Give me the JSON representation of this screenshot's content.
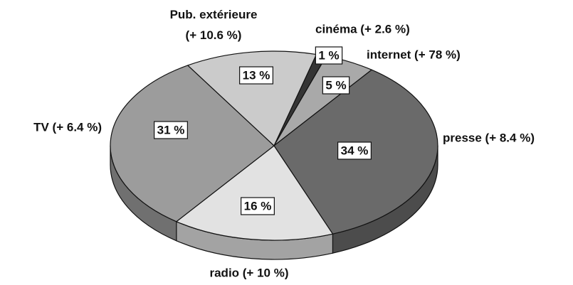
{
  "chart_data": {
    "type": "pie3d",
    "categories": [
      "cinéma (+ 2.6 %)",
      "internet (+ 78 %)",
      "presse (+ 8.4 %)",
      "radio (+ 10 %)",
      "TV (+ 6.4 %)",
      "Pub. extérieure (+ 10.6 %)"
    ],
    "values": [
      1,
      5,
      34,
      16,
      31,
      13
    ],
    "value_labels": [
      "1 %",
      "5 %",
      "34 %",
      "16 %",
      "31 %",
      "13 %"
    ],
    "colors": [
      "#353535",
      "#a9a9a9",
      "#6a6a6a",
      "#e2e2e2",
      "#9c9c9c",
      "#cbcbcb"
    ]
  }
}
